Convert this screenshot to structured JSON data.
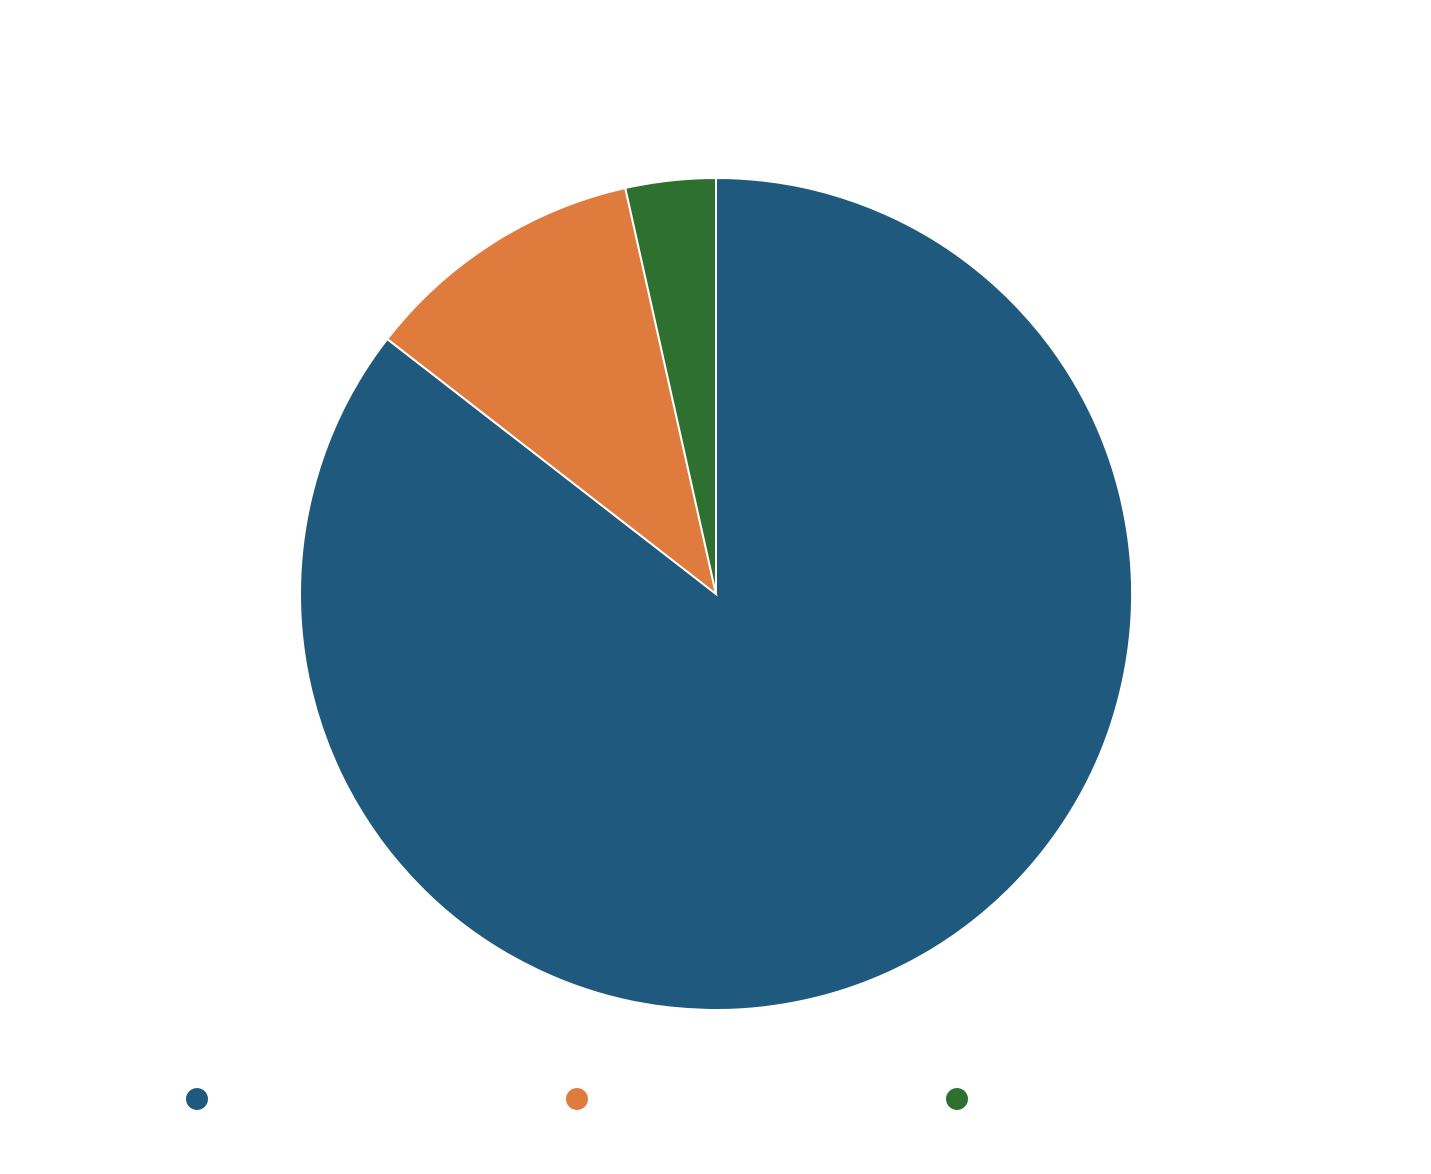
{
  "chart_data": {
    "type": "pie",
    "title": "",
    "start_angle_deg": 0,
    "direction": "clockwise",
    "slices": [
      {
        "label": "",
        "value": 85.5,
        "color": "#1f5a7e"
      },
      {
        "label": "",
        "value": 11.0,
        "color": "#e07b3e"
      },
      {
        "label": "",
        "value": 3.5,
        "color": "#2e7030"
      }
    ],
    "legend": {
      "position": "bottom"
    }
  }
}
